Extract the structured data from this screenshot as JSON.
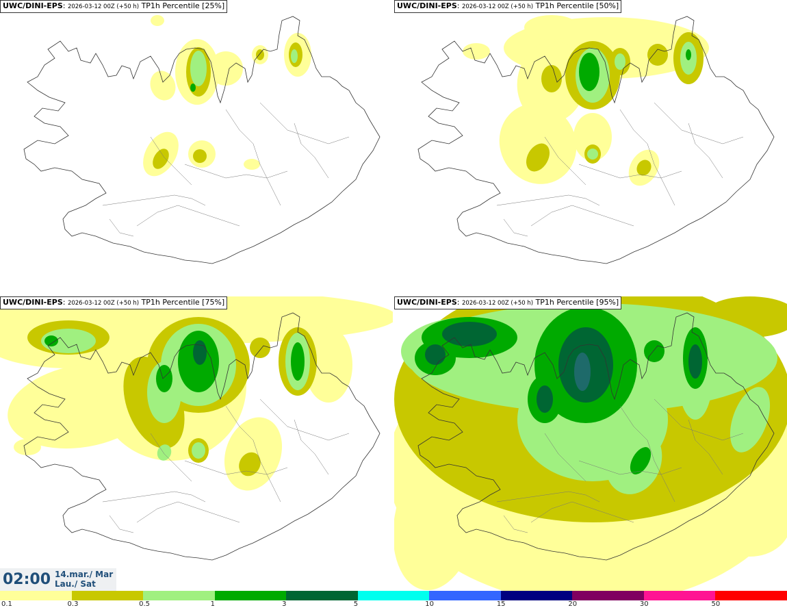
{
  "panels": [
    {
      "model": "UWC/DINI-EPS",
      "run": "2026-03-12 00Z (+50 h)",
      "field": "TP1h Percentile [25%]",
      "level": 0
    },
    {
      "model": "UWC/DINI-EPS",
      "run": "2026-03-12 00Z (+50 h)",
      "field": "TP1h Percentile [50%]",
      "level": 1
    },
    {
      "model": "UWC/DINI-EPS",
      "run": "2026-03-12 00Z (+50 h)",
      "field": "TP1h Percentile [75%]",
      "level": 2
    },
    {
      "model": "UWC/DINI-EPS",
      "run": "2026-03-12 00Z (+50 h)",
      "field": "TP1h Percentile [95%]",
      "level": 3
    }
  ],
  "valid_time": {
    "time": "02:00",
    "date_line1": "14.mar./ Mar",
    "date_line2": "Lau./ Sat"
  },
  "colorbar": {
    "ticks": [
      "0.1",
      "0.3",
      "0.5",
      "1",
      "3",
      "5",
      "10",
      "15",
      "20",
      "30",
      "50"
    ],
    "colors": [
      "#ffff99",
      "#c8c800",
      "#a0f080",
      "#00aa00",
      "#006633",
      "#00ffee",
      "#3366ff",
      "#000080",
      "#800060",
      "#ff1493",
      "#ff0000"
    ]
  }
}
